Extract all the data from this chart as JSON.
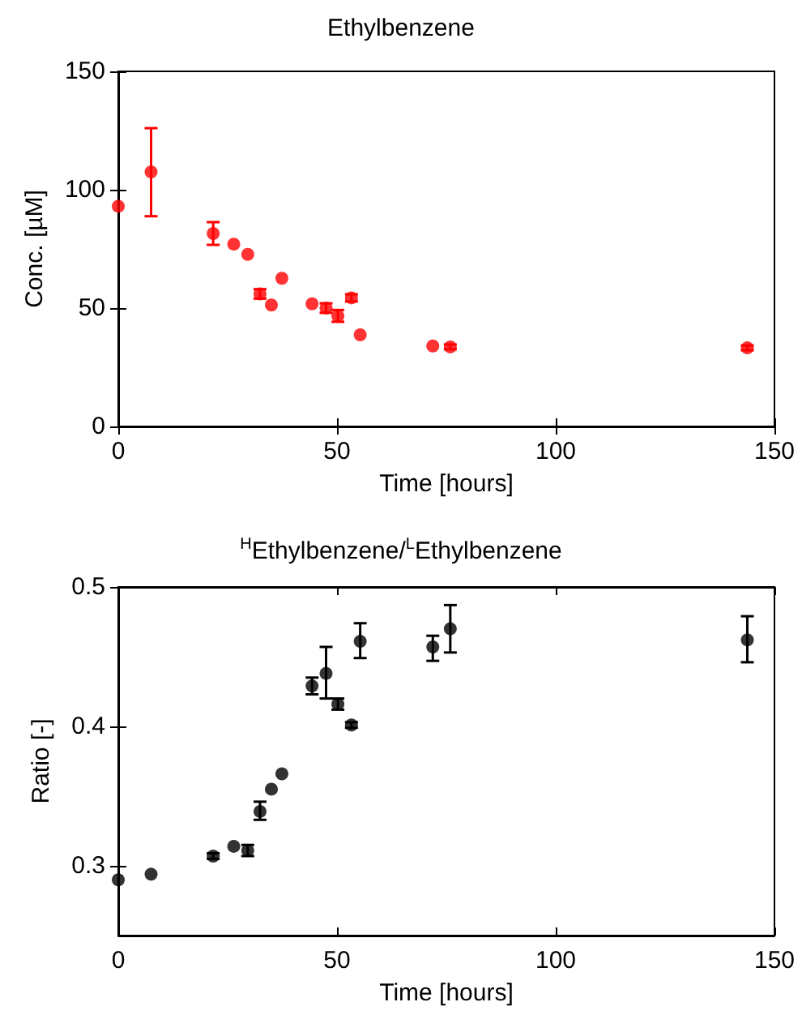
{
  "chart_data": [
    {
      "type": "scatter",
      "title": "Ethylbenzene",
      "xlabel": "Time [hours]",
      "ylabel": "Conc. [µM]",
      "x": [
        0,
        7.5,
        21.7,
        26.4,
        29.6,
        32.4,
        35,
        37.4,
        44.3,
        47.5,
        50.2,
        53.3,
        55.3,
        71.9,
        75.9,
        143.8
      ],
      "series": [
        {
          "color": "#ff0000",
          "values": [
            93,
            107.5,
            81.5,
            77,
            72.7,
            56,
            51.3,
            62.6,
            51.8,
            50,
            46.7,
            54.3,
            38.7,
            34,
            33.6,
            33.2
          ],
          "errors": [
            null,
            [
              88.8,
              126
            ],
            [
              76.7,
              86.3
            ],
            null,
            null,
            2,
            null,
            null,
            null,
            2,
            2.5,
            1.5,
            null,
            null,
            1,
            1
          ]
        }
      ],
      "xlim": [
        0,
        150
      ],
      "xticks": [
        0,
        50,
        100,
        150
      ],
      "ylim": [
        0,
        150
      ],
      "yticks": [
        0,
        50,
        100,
        150
      ],
      "marker": "circle"
    },
    {
      "type": "scatter",
      "title": "$^{H}$Ethylbenzene/$^{L}$Ethylbenzene",
      "xlabel": "Time [hours]",
      "ylabel": "Ratio [-]",
      "x": [
        0,
        7.5,
        21.7,
        26.4,
        29.6,
        32.4,
        35,
        37.4,
        44.3,
        47.5,
        50.2,
        53.3,
        55.3,
        71.9,
        75.9,
        143.8
      ],
      "series": [
        {
          "color": "#000000",
          "values": [
            0.29,
            0.294,
            0.307,
            0.314,
            0.311,
            0.339,
            0.355,
            0.366,
            0.429,
            0.438,
            0.416,
            0.401,
            0.461,
            0.457,
            0.47,
            0.462
          ],
          "errors": [
            null,
            null,
            0.002,
            null,
            0.004,
            [
              0.333,
              0.346
            ],
            null,
            null,
            [
              0.423,
              0.435
            ],
            [
              0.42,
              0.457
            ],
            0.004,
            0.002,
            [
              0.449,
              0.474
            ],
            [
              0.447,
              0.465
            ],
            [
              0.453,
              0.487
            ],
            [
              0.446,
              0.479
            ]
          ]
        }
      ],
      "xlim": [
        0,
        150
      ],
      "xticks": [
        0,
        50,
        100,
        150
      ],
      "ylim": [
        0.25,
        0.5
      ],
      "yticks": [
        0.3,
        0.4,
        0.5
      ],
      "marker": "circle"
    }
  ]
}
